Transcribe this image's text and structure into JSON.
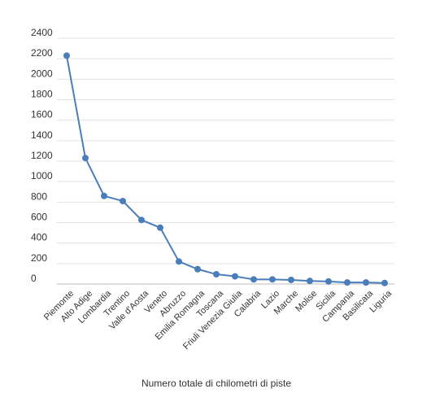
{
  "chart_data": {
    "type": "line",
    "title": "",
    "xlabel": "Numero totale di chilometri di piste",
    "ylabel": "",
    "ylim": [
      0,
      2400
    ],
    "yticks": [
      0,
      200,
      400,
      600,
      800,
      1000,
      1200,
      1400,
      1600,
      1800,
      2000,
      2200,
      2400
    ],
    "grid": true,
    "legend": "none",
    "categories": [
      "Piemonte",
      "Alto Adige",
      "Lombardia",
      "Trentino",
      "Valle d'Aosta",
      "Veneto",
      "Abruzzo",
      "Emilia Romagna",
      "Toscana",
      "Friuli Venezia Giulia",
      "Calabria",
      "Lazio",
      "Marche",
      "Molise",
      "Sicilia",
      "Campania",
      "Basilicata",
      "Liguria"
    ],
    "series": [
      {
        "values": [
          2230,
          1230,
          860,
          810,
          625,
          550,
          220,
          145,
          95,
          75,
          45,
          45,
          40,
          30,
          25,
          15,
          15,
          10
        ],
        "color": "#4a7ebb"
      }
    ]
  }
}
